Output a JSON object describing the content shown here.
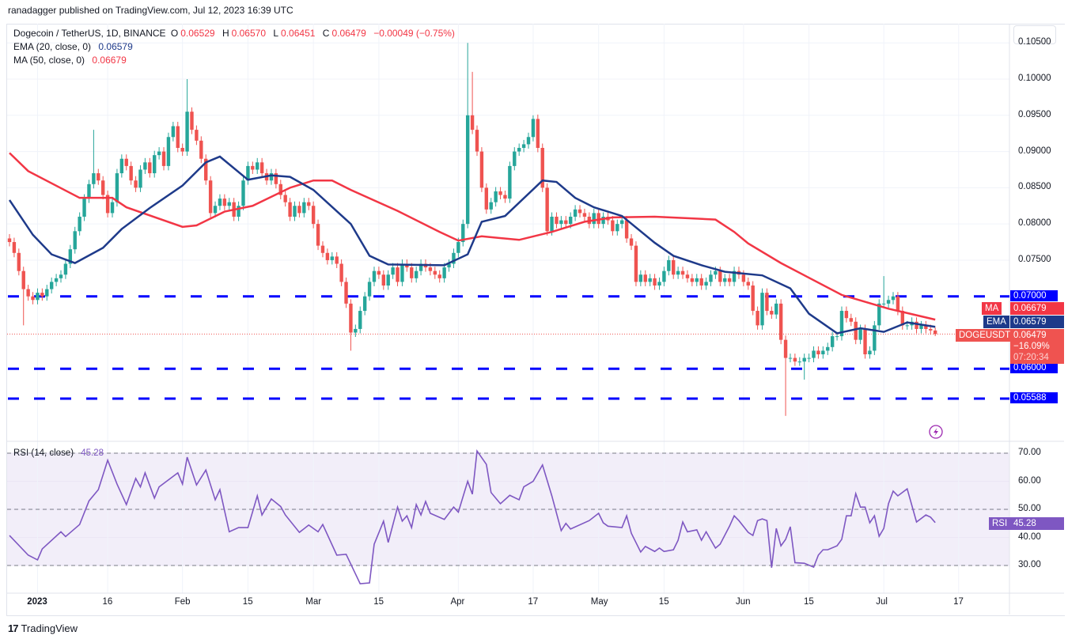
{
  "header": {
    "published": "ranadagger published on TradingView.com, Jul 12, 2023 16:39 UTC"
  },
  "legend": {
    "symbol": "Dogecoin / TetherUS, 1D, BINANCE",
    "o_label": "O",
    "o": "0.06529",
    "h_label": "H",
    "h": "0.06570",
    "l_label": "L",
    "l": "0.06451",
    "c_label": "C",
    "c": "0.06479",
    "change": "−0.00049 (−0.75%)",
    "ema_label": "EMA (20, close, 0)",
    "ema_value": "0.06579",
    "ma_label": "MA (50, close, 0)",
    "ma_value": "0.06679",
    "rsi_label": "RSI (14, close)",
    "rsi_value": "45.28"
  },
  "price_axis": {
    "ticks": [
      "0.10500",
      "0.10000",
      "0.09500",
      "0.09000",
      "0.08500",
      "0.08000",
      "0.07500",
      "0.07000",
      "0.06000",
      "0.05588"
    ],
    "tick_values": [
      0.105,
      0.1,
      0.095,
      0.09,
      0.085,
      0.08,
      0.075
    ],
    "level_tags": [
      {
        "label": "0.07000",
        "value": 0.07
      },
      {
        "label": "0.06000",
        "value": 0.06
      },
      {
        "label": "0.05588",
        "value": 0.05588
      }
    ],
    "ma_tag": {
      "name": "MA",
      "value": "0.06679"
    },
    "ema_tag": {
      "name": "EMA",
      "value": "0.06579"
    },
    "price_tag": {
      "name": "DOGEUSDT",
      "value": "0.06479",
      "change": "−16.09%",
      "countdown": "07:20:34"
    }
  },
  "rsi_axis": {
    "ticks": [
      "70.00",
      "60.00",
      "50.00",
      "40.00",
      "30.00"
    ],
    "tick_values": [
      70,
      60,
      50,
      40,
      30
    ],
    "tag_name": "RSI",
    "tag_value": "45.28"
  },
  "time_axis": {
    "labels": [
      {
        "text": "2023",
        "day": 6,
        "bold": true
      },
      {
        "text": "16",
        "day": 21
      },
      {
        "text": "Feb",
        "day": 37
      },
      {
        "text": "15",
        "day": 51
      },
      {
        "text": "Mar",
        "day": 65
      },
      {
        "text": "15",
        "day": 79
      },
      {
        "text": "Apr",
        "day": 96
      },
      {
        "text": "17",
        "day": 112
      },
      {
        "text": "May",
        "day": 126
      },
      {
        "text": "15",
        "day": 140
      },
      {
        "text": "Jun",
        "day": 157
      },
      {
        "text": "15",
        "day": 171
      },
      {
        "text": "Jul",
        "day": 187
      },
      {
        "text": "17",
        "day": 203
      }
    ]
  },
  "footer": {
    "brand": "TradingView"
  },
  "colors": {
    "up": "#26a69a",
    "down": "#ef5350",
    "ema": "#1e3a8a",
    "ma": "#f23645",
    "rsi": "#7e57c2",
    "level": "#0000ff"
  },
  "chart_data": {
    "type": "candlestick",
    "title": "Dogecoin / TetherUS, 1D, BINANCE",
    "x_start": "2022-12-26",
    "x_end": "2023-07-12",
    "ylim": [
      0.0525,
      0.1055
    ],
    "closes": [
      0.0775,
      0.076,
      0.0735,
      0.071,
      0.07,
      0.0695,
      0.0705,
      0.07,
      0.071,
      0.072,
      0.0725,
      0.073,
      0.0745,
      0.0765,
      0.079,
      0.081,
      0.0835,
      0.0855,
      0.087,
      0.086,
      0.084,
      0.0815,
      0.083,
      0.087,
      0.089,
      0.088,
      0.086,
      0.085,
      0.0875,
      0.0885,
      0.087,
      0.0895,
      0.09,
      0.088,
      0.092,
      0.0935,
      0.0905,
      0.09,
      0.0955,
      0.093,
      0.0915,
      0.089,
      0.086,
      0.0815,
      0.0825,
      0.0835,
      0.0825,
      0.083,
      0.081,
      0.0825,
      0.086,
      0.088,
      0.0875,
      0.0885,
      0.087,
      0.086,
      0.087,
      0.0855,
      0.084,
      0.083,
      0.081,
      0.0825,
      0.0815,
      0.083,
      0.0825,
      0.08,
      0.077,
      0.076,
      0.075,
      0.0755,
      0.0745,
      0.072,
      0.069,
      0.065,
      0.0655,
      0.068,
      0.07,
      0.072,
      0.0735,
      0.073,
      0.0715,
      0.073,
      0.074,
      0.072,
      0.0745,
      0.074,
      0.0725,
      0.0735,
      0.0745,
      0.074,
      0.0735,
      0.073,
      0.0725,
      0.074,
      0.0745,
      0.076,
      0.0775,
      0.08,
      0.095,
      0.093,
      0.09,
      0.085,
      0.082,
      0.083,
      0.0845,
      0.084,
      0.0835,
      0.088,
      0.09,
      0.0905,
      0.091,
      0.092,
      0.0945,
      0.0905,
      0.085,
      0.079,
      0.081,
      0.08,
      0.0805,
      0.08,
      0.081,
      0.082,
      0.0815,
      0.081,
      0.08,
      0.0815,
      0.08,
      0.081,
      0.0805,
      0.079,
      0.08,
      0.0805,
      0.078,
      0.077,
      0.072,
      0.073,
      0.072,
      0.0725,
      0.0715,
      0.072,
      0.0735,
      0.075,
      0.073,
      0.0735,
      0.073,
      0.0725,
      0.072,
      0.0725,
      0.0715,
      0.072,
      0.073,
      0.0735,
      0.072,
      0.0725,
      0.072,
      0.0735,
      0.073,
      0.072,
      0.0715,
      0.068,
      0.066,
      0.0705,
      0.068,
      0.0675,
      0.069,
      0.064,
      0.0615,
      0.0615,
      0.061,
      0.061,
      0.0615,
      0.0615,
      0.0625,
      0.062,
      0.0625,
      0.063,
      0.0645,
      0.0645,
      0.068,
      0.067,
      0.0665,
      0.064,
      0.0655,
      0.062,
      0.0625,
      0.066,
      0.069,
      0.069,
      0.0695,
      0.07,
      0.068,
      0.066,
      0.066,
      0.0665,
      0.0655,
      0.066,
      0.0655,
      0.0653,
      0.06479
    ],
    "first_open": 0.078,
    "last_candle": {
      "open": 0.06529,
      "high": 0.0657,
      "low": 0.06451,
      "close": 0.06479
    },
    "high_overrides": {
      "38": 0.1,
      "98": 0.105,
      "99": 0.101,
      "112": 0.095,
      "187": 0.0728,
      "18": 0.093
    },
    "low_overrides": {
      "73": 0.0625,
      "166": 0.0535,
      "170": 0.0585,
      "3": 0.066
    },
    "ema20": [
      [
        0,
        0.0833
      ],
      [
        5,
        0.0785
      ],
      [
        9,
        0.0758
      ],
      [
        14,
        0.0746
      ],
      [
        20,
        0.0767
      ],
      [
        24,
        0.0793
      ],
      [
        30,
        0.0822
      ],
      [
        37,
        0.0853
      ],
      [
        42,
        0.0885
      ],
      [
        45,
        0.0893
      ],
      [
        51,
        0.0861
      ],
      [
        56,
        0.0867
      ],
      [
        60,
        0.0865
      ],
      [
        65,
        0.0847
      ],
      [
        73,
        0.08
      ],
      [
        77,
        0.0756
      ],
      [
        81,
        0.0744
      ],
      [
        93,
        0.0743
      ],
      [
        98,
        0.0758
      ],
      [
        101,
        0.0803
      ],
      [
        106,
        0.0811
      ],
      [
        114,
        0.086
      ],
      [
        117,
        0.0858
      ],
      [
        121,
        0.0836
      ],
      [
        125,
        0.0823
      ],
      [
        131,
        0.0811
      ],
      [
        138,
        0.0774
      ],
      [
        142,
        0.0756
      ],
      [
        148,
        0.0743
      ],
      [
        153,
        0.0734
      ],
      [
        161,
        0.0729
      ],
      [
        167,
        0.0711
      ],
      [
        171,
        0.0676
      ],
      [
        177,
        0.0649
      ],
      [
        182,
        0.0656
      ],
      [
        187,
        0.0651
      ],
      [
        192,
        0.0664
      ],
      [
        198,
        0.06579
      ]
    ],
    "ma50": [
      [
        0,
        0.0898
      ],
      [
        4,
        0.0873
      ],
      [
        15,
        0.0836
      ],
      [
        22,
        0.0836
      ],
      [
        25,
        0.0823
      ],
      [
        37,
        0.0796
      ],
      [
        40,
        0.0798
      ],
      [
        46,
        0.0817
      ],
      [
        52,
        0.0825
      ],
      [
        60,
        0.085
      ],
      [
        65,
        0.086
      ],
      [
        69,
        0.086
      ],
      [
        73,
        0.0847
      ],
      [
        83,
        0.0818
      ],
      [
        92,
        0.0789
      ],
      [
        96,
        0.0777
      ],
      [
        101,
        0.0783
      ],
      [
        109,
        0.0778
      ],
      [
        116,
        0.0789
      ],
      [
        123,
        0.0803
      ],
      [
        129,
        0.0809
      ],
      [
        138,
        0.081
      ],
      [
        145,
        0.0808
      ],
      [
        151,
        0.0806
      ],
      [
        155,
        0.0789
      ],
      [
        158,
        0.0773
      ],
      [
        165,
        0.0746
      ],
      [
        178,
        0.0702
      ],
      [
        188,
        0.0683
      ],
      [
        198,
        0.06679
      ]
    ],
    "rsi14": [
      [
        0,
        40.7
      ],
      [
        4,
        33.7
      ],
      [
        6,
        32
      ],
      [
        7,
        35.9
      ],
      [
        11,
        42
      ],
      [
        12,
        40.3
      ],
      [
        15,
        44.6
      ],
      [
        17,
        53
      ],
      [
        19,
        57
      ],
      [
        21,
        67.5
      ],
      [
        23,
        59
      ],
      [
        25,
        51.7
      ],
      [
        27,
        61
      ],
      [
        28,
        58
      ],
      [
        29,
        63
      ],
      [
        31,
        54
      ],
      [
        32,
        58
      ],
      [
        36,
        63
      ],
      [
        37,
        59
      ],
      [
        38,
        68.6
      ],
      [
        40,
        58.7
      ],
      [
        42,
        64
      ],
      [
        44,
        53.4
      ],
      [
        45,
        57
      ],
      [
        47,
        42
      ],
      [
        49,
        43.5
      ],
      [
        51,
        43.5
      ],
      [
        53,
        54.8
      ],
      [
        54,
        48
      ],
      [
        56,
        53.7
      ],
      [
        58,
        51
      ],
      [
        59,
        48
      ],
      [
        62,
        41.8
      ],
      [
        64,
        44.4
      ],
      [
        66,
        42
      ],
      [
        67,
        44.6
      ],
      [
        70,
        33.7
      ],
      [
        72,
        34
      ],
      [
        75,
        23.5
      ],
      [
        77,
        23.8
      ],
      [
        78,
        37.6
      ],
      [
        80,
        45.8
      ],
      [
        81,
        38.2
      ],
      [
        83,
        50.8
      ],
      [
        84,
        45.8
      ],
      [
        85,
        47.7
      ],
      [
        86,
        43.5
      ],
      [
        87,
        51.7
      ],
      [
        88,
        48
      ],
      [
        89,
        52.8
      ],
      [
        90,
        48.6
      ],
      [
        93,
        46.4
      ],
      [
        95,
        50.8
      ],
      [
        96,
        49
      ],
      [
        98,
        60
      ],
      [
        99,
        55.4
      ],
      [
        100,
        70.8
      ],
      [
        102,
        66
      ],
      [
        103,
        56
      ],
      [
        105,
        52
      ],
      [
        107,
        55
      ],
      [
        109,
        53.4
      ],
      [
        110,
        58
      ],
      [
        112,
        60
      ],
      [
        114,
        65.8
      ],
      [
        116,
        54.8
      ],
      [
        118,
        42.4
      ],
      [
        119,
        45
      ],
      [
        120,
        43
      ],
      [
        124,
        46
      ],
      [
        126,
        48.6
      ],
      [
        127,
        45.2
      ],
      [
        128,
        44
      ],
      [
        131,
        43.5
      ],
      [
        132,
        47.7
      ],
      [
        133,
        41.5
      ],
      [
        135,
        34.8
      ],
      [
        136,
        36.8
      ],
      [
        138,
        35
      ],
      [
        139,
        36.2
      ],
      [
        140,
        35
      ],
      [
        142,
        35.6
      ],
      [
        143,
        39
      ],
      [
        144,
        45.5
      ],
      [
        145,
        42
      ],
      [
        147,
        42.7
      ],
      [
        148,
        39
      ],
      [
        149,
        42
      ],
      [
        151,
        36.2
      ],
      [
        152,
        37.6
      ],
      [
        154,
        44
      ],
      [
        155,
        47.7
      ],
      [
        156,
        46
      ],
      [
        158,
        41.8
      ],
      [
        159,
        40.7
      ],
      [
        160,
        46
      ],
      [
        161,
        46.6
      ],
      [
        162,
        46
      ],
      [
        163,
        29.2
      ],
      [
        164,
        43.2
      ],
      [
        165,
        37
      ],
      [
        166,
        39.3
      ],
      [
        167,
        43.8
      ],
      [
        168,
        31
      ],
      [
        170,
        30.8
      ],
      [
        172,
        29.4
      ],
      [
        173,
        33.7
      ],
      [
        174,
        35.6
      ],
      [
        175,
        35.6
      ],
      [
        177,
        37
      ],
      [
        178,
        39.3
      ],
      [
        179,
        47.7
      ],
      [
        180,
        47.7
      ],
      [
        181,
        55.6
      ],
      [
        182,
        50.8
      ],
      [
        183,
        50.8
      ],
      [
        184,
        45.2
      ],
      [
        185,
        47.7
      ],
      [
        186,
        40.4
      ],
      [
        187,
        43.2
      ],
      [
        188,
        52
      ],
      [
        189,
        56.5
      ],
      [
        190,
        54.8
      ],
      [
        192,
        57.3
      ],
      [
        194,
        45.5
      ],
      [
        196,
        48
      ],
      [
        197,
        47.2
      ],
      [
        198,
        45.28
      ]
    ],
    "rsi_ylim": [
      20,
      72
    ],
    "rsi_bands": [
      30,
      50,
      70
    ],
    "horizontal_levels": [
      0.07,
      0.06,
      0.05588
    ]
  }
}
